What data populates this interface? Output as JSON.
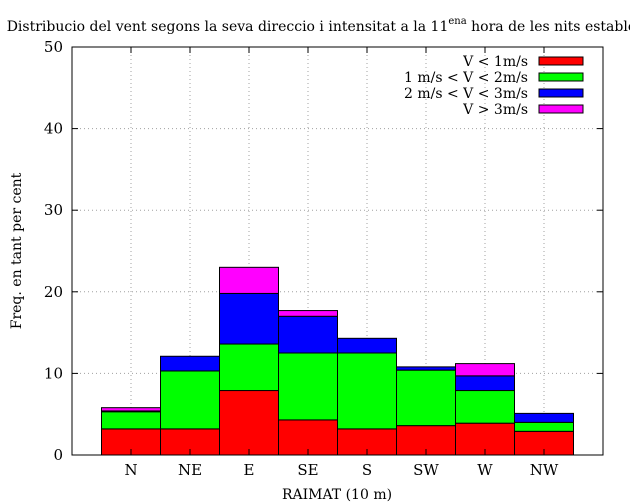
{
  "chart_data": {
    "type": "bar",
    "stacked": true,
    "title": {
      "main": "Distribucio del vent segons la seva direccio i intensitat a la 11",
      "sup": "ena",
      "rest": " hora de les nits estables"
    },
    "xlabel": "RAIMAT (10 m)",
    "ylabel": "Freq. en tant per cent",
    "ylim": [
      0,
      50
    ],
    "yticks": [
      0,
      10,
      20,
      30,
      40,
      50
    ],
    "grid": true,
    "legend_position": "top-right",
    "categories": [
      "N",
      "NE",
      "E",
      "SE",
      "S",
      "SW",
      "W",
      "NW"
    ],
    "series": [
      {
        "name": "V < 1m/s",
        "color": "#ff0000",
        "values": [
          3.2,
          3.2,
          7.9,
          4.3,
          3.2,
          3.6,
          3.9,
          2.9
        ]
      },
      {
        "name": "1 m/s < V < 2m/s",
        "color": "#00ff00",
        "values": [
          2.1,
          7.1,
          5.7,
          8.2,
          9.3,
          6.8,
          4.0,
          1.1
        ]
      },
      {
        "name": "2 m/s < V < 3m/s",
        "color": "#0000ff",
        "values": [
          0.1,
          1.8,
          6.2,
          4.5,
          1.8,
          0.4,
          1.8,
          1.1
        ]
      },
      {
        "name": "V > 3m/s",
        "color": "#ff00ff",
        "values": [
          0.4,
          0.0,
          3.2,
          0.7,
          0.0,
          0.0,
          1.5,
          0.0
        ]
      }
    ]
  }
}
